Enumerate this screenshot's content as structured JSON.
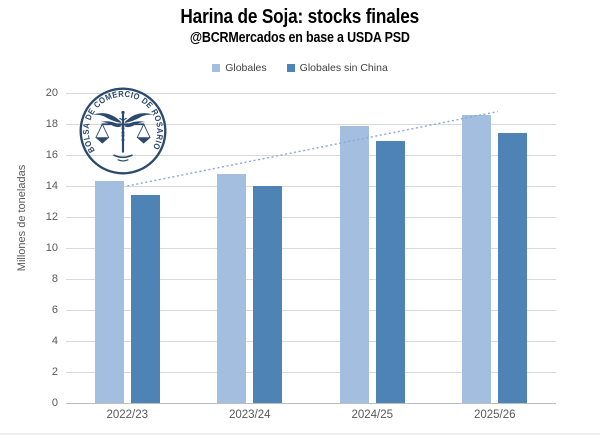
{
  "chart_data": {
    "type": "bar",
    "title": "Harina de Soja: stocks finales",
    "subtitle": "@BCRMercados en base a USDA PSD",
    "categories": [
      "2022/23",
      "2023/24",
      "2024/25",
      "2025/26"
    ],
    "series": [
      {
        "name": "Globales",
        "color": "#a3bede",
        "values": [
          14.3,
          14.8,
          17.9,
          18.6
        ]
      },
      {
        "name": "Globales sin China",
        "color": "#4e84b5",
        "values": [
          13.4,
          14.0,
          16.9,
          17.4
        ]
      }
    ],
    "xlabel": "",
    "ylabel": "Millones de toneladas",
    "ylim": [
      0,
      20
    ],
    "yticks": [
      0,
      2,
      4,
      6,
      8,
      10,
      12,
      14,
      16,
      18,
      20
    ],
    "grid": true,
    "legend_position": "top-center",
    "trendline": {
      "series": "Globales",
      "style": "dotted",
      "color": "#86a8d8",
      "start_value": 14.0,
      "end_value": 18.8
    }
  },
  "logo": {
    "text": "BOLSA DE COMERCIO DE ROSARIO",
    "color": "#2c4a6e"
  },
  "colors": {
    "gridline": "#d9d9d9",
    "axis_baseline": "#bdbdbd",
    "tick_text": "#595959",
    "title_text": "#000000"
  }
}
